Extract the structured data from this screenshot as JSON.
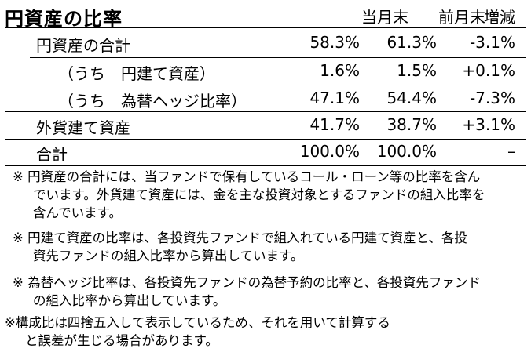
{
  "title": "円資産の比率",
  "headers": [
    "当月末",
    "前月末",
    "増減"
  ],
  "rows": [
    {
      "label": "円資産の合計",
      "values": [
        "58.3%",
        "61.3%",
        "-3.1%"
      ],
      "indent": 1
    },
    {
      "label": "（うち　円建て資産）",
      "values": [
        "1.6%",
        "1.5%",
        "+0.1%"
      ],
      "indent": 2
    },
    {
      "label": "（うち　為替ヘッジ比率）",
      "values": [
        "47.1%",
        "54.4%",
        "-7.3%"
      ],
      "indent": 2
    },
    {
      "label": "外貨建て資産",
      "values": [
        "41.7%",
        "38.7%",
        "+3.1%"
      ],
      "indent": 1
    },
    {
      "label": "合計",
      "values": [
        "100.0%",
        "100.0%",
        "–"
      ],
      "indent": 1
    }
  ],
  "notes": [
    [
      "※ 円資産の合計には、当ファンドで保有しているコール・ローン等の比率を含ん",
      "でいます。外貨建て資産には、金を主な投資対象とするファンドの組入比率を",
      "含んでいます。"
    ],
    [
      "※ 円建て資産の比率は、各投資先ファンドで組入れている円建て資産と、各投",
      "資先ファンドの組入比率から算出しています。"
    ],
    [
      "※ 為替ヘッジ比率は、各投資先ファンドの為替予約の比率と、各投資先ファンド",
      "の組入比率から算出しています。"
    ],
    [
      "※構成比は四捨五入して表示しているため、それを用いて計算する",
      "と誤差が生じる場合があります。"
    ]
  ]
}
